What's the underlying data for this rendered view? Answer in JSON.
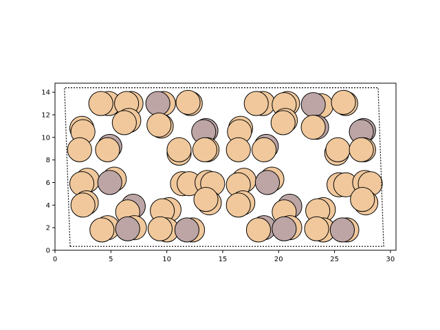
{
  "chart_data": {
    "type": "scatter",
    "title": "",
    "xlabel": "",
    "ylabel": "",
    "xlim": [
      0,
      30.5
    ],
    "ylim": [
      0,
      14.8
    ],
    "xticks": [
      "0",
      "5",
      "10",
      "15",
      "20",
      "25",
      "30"
    ],
    "yticks": [
      "0",
      "2",
      "4",
      "6",
      "8",
      "10",
      "12",
      "14"
    ],
    "atom_radius": 1.08,
    "colors": {
      "light": "#f0c89c",
      "dark": "#bda5a5",
      "edge": "#000000"
    },
    "cell": [
      [
        1.35,
        0.35
      ],
      [
        29.4,
        0.35
      ],
      [
        28.9,
        14.4
      ],
      [
        0.85,
        14.4
      ]
    ],
    "atoms": [
      {
        "x": 4.8,
        "y": 13.0,
        "c": "light"
      },
      {
        "x": 4.1,
        "y": 13.0,
        "c": "light"
      },
      {
        "x": 6.8,
        "y": 13.0,
        "c": "light"
      },
      {
        "x": 6.4,
        "y": 13.0,
        "c": "light"
      },
      {
        "x": 9.7,
        "y": 13.0,
        "c": "light"
      },
      {
        "x": 9.2,
        "y": 13.0,
        "c": "dark"
      },
      {
        "x": 12.1,
        "y": 13.0,
        "c": "light"
      },
      {
        "x": 11.9,
        "y": 13.1,
        "c": "light"
      },
      {
        "x": 2.4,
        "y": 10.8,
        "c": "light"
      },
      {
        "x": 2.5,
        "y": 10.5,
        "c": "light"
      },
      {
        "x": 6.6,
        "y": 11.5,
        "c": "light"
      },
      {
        "x": 6.2,
        "y": 11.3,
        "c": "light"
      },
      {
        "x": 9.5,
        "y": 11.0,
        "c": "light"
      },
      {
        "x": 9.3,
        "y": 11.1,
        "c": "light"
      },
      {
        "x": 13.5,
        "y": 10.6,
        "c": "dark"
      },
      {
        "x": 13.3,
        "y": 10.5,
        "c": "dark"
      },
      {
        "x": 2.2,
        "y": 8.9,
        "c": "light"
      },
      {
        "x": 4.9,
        "y": 9.2,
        "c": "dark"
      },
      {
        "x": 4.7,
        "y": 8.9,
        "c": "light"
      },
      {
        "x": 11.1,
        "y": 8.6,
        "c": "light"
      },
      {
        "x": 11.1,
        "y": 8.9,
        "c": "light"
      },
      {
        "x": 13.6,
        "y": 8.9,
        "c": "light"
      },
      {
        "x": 13.4,
        "y": 8.9,
        "c": "light"
      },
      {
        "x": 2.9,
        "y": 6.2,
        "c": "light"
      },
      {
        "x": 2.4,
        "y": 5.9,
        "c": "light"
      },
      {
        "x": 5.3,
        "y": 6.3,
        "c": "light"
      },
      {
        "x": 4.9,
        "y": 6.0,
        "c": "dark"
      },
      {
        "x": 11.4,
        "y": 5.9,
        "c": "light"
      },
      {
        "x": 12.0,
        "y": 5.9,
        "c": "light"
      },
      {
        "x": 13.6,
        "y": 6.0,
        "c": "light"
      },
      {
        "x": 14.1,
        "y": 5.9,
        "c": "light"
      },
      {
        "x": 13.8,
        "y": 4.2,
        "c": "light"
      },
      {
        "x": 13.5,
        "y": 4.5,
        "c": "light"
      },
      {
        "x": 2.8,
        "y": 4.2,
        "c": "light"
      },
      {
        "x": 2.5,
        "y": 4.0,
        "c": "light"
      },
      {
        "x": 7.0,
        "y": 3.9,
        "c": "dark"
      },
      {
        "x": 6.5,
        "y": 3.4,
        "c": "light"
      },
      {
        "x": 10.2,
        "y": 3.6,
        "c": "light"
      },
      {
        "x": 9.6,
        "y": 3.5,
        "c": "light"
      },
      {
        "x": 4.7,
        "y": 2.0,
        "c": "light"
      },
      {
        "x": 4.2,
        "y": 1.8,
        "c": "light"
      },
      {
        "x": 7.1,
        "y": 2.0,
        "c": "light"
      },
      {
        "x": 6.5,
        "y": 1.9,
        "c": "dark"
      },
      {
        "x": 10.0,
        "y": 1.8,
        "c": "light"
      },
      {
        "x": 9.4,
        "y": 1.9,
        "c": "light"
      },
      {
        "x": 12.3,
        "y": 1.8,
        "c": "light"
      },
      {
        "x": 11.8,
        "y": 1.8,
        "c": "dark"
      },
      {
        "x": 18.6,
        "y": 13.0,
        "c": "light"
      },
      {
        "x": 18.0,
        "y": 13.0,
        "c": "light"
      },
      {
        "x": 20.8,
        "y": 13.0,
        "c": "light"
      },
      {
        "x": 20.5,
        "y": 12.9,
        "c": "light"
      },
      {
        "x": 23.8,
        "y": 12.8,
        "c": "light"
      },
      {
        "x": 23.1,
        "y": 12.9,
        "c": "dark"
      },
      {
        "x": 26.0,
        "y": 13.0,
        "c": "light"
      },
      {
        "x": 25.8,
        "y": 13.1,
        "c": "light"
      },
      {
        "x": 16.6,
        "y": 10.8,
        "c": "light"
      },
      {
        "x": 16.5,
        "y": 10.5,
        "c": "light"
      },
      {
        "x": 20.6,
        "y": 11.5,
        "c": "light"
      },
      {
        "x": 20.4,
        "y": 11.3,
        "c": "light"
      },
      {
        "x": 23.4,
        "y": 10.9,
        "c": "dark"
      },
      {
        "x": 23.1,
        "y": 10.9,
        "c": "light"
      },
      {
        "x": 27.6,
        "y": 10.6,
        "c": "dark"
      },
      {
        "x": 27.4,
        "y": 10.5,
        "c": "dark"
      },
      {
        "x": 16.4,
        "y": 8.9,
        "c": "light"
      },
      {
        "x": 18.9,
        "y": 9.2,
        "c": "dark"
      },
      {
        "x": 18.7,
        "y": 8.9,
        "c": "light"
      },
      {
        "x": 25.2,
        "y": 8.6,
        "c": "light"
      },
      {
        "x": 25.3,
        "y": 8.9,
        "c": "light"
      },
      {
        "x": 27.6,
        "y": 8.9,
        "c": "light"
      },
      {
        "x": 27.4,
        "y": 8.9,
        "c": "light"
      },
      {
        "x": 16.9,
        "y": 6.2,
        "c": "light"
      },
      {
        "x": 16.4,
        "y": 5.8,
        "c": "light"
      },
      {
        "x": 19.4,
        "y": 6.3,
        "c": "light"
      },
      {
        "x": 19.0,
        "y": 6.0,
        "c": "dark"
      },
      {
        "x": 25.4,
        "y": 5.8,
        "c": "light"
      },
      {
        "x": 26.0,
        "y": 5.8,
        "c": "light"
      },
      {
        "x": 27.7,
        "y": 6.0,
        "c": "light"
      },
      {
        "x": 28.2,
        "y": 5.9,
        "c": "light"
      },
      {
        "x": 27.8,
        "y": 4.2,
        "c": "light"
      },
      {
        "x": 27.5,
        "y": 4.5,
        "c": "light"
      },
      {
        "x": 16.8,
        "y": 4.2,
        "c": "light"
      },
      {
        "x": 16.4,
        "y": 4.0,
        "c": "light"
      },
      {
        "x": 21.0,
        "y": 3.9,
        "c": "dark"
      },
      {
        "x": 20.5,
        "y": 3.4,
        "c": "light"
      },
      {
        "x": 24.0,
        "y": 3.6,
        "c": "light"
      },
      {
        "x": 23.5,
        "y": 3.5,
        "c": "light"
      },
      {
        "x": 18.7,
        "y": 2.0,
        "c": "dark"
      },
      {
        "x": 18.2,
        "y": 1.8,
        "c": "light"
      },
      {
        "x": 21.0,
        "y": 2.0,
        "c": "light"
      },
      {
        "x": 20.5,
        "y": 1.9,
        "c": "dark"
      },
      {
        "x": 24.0,
        "y": 1.8,
        "c": "light"
      },
      {
        "x": 23.4,
        "y": 1.9,
        "c": "light"
      },
      {
        "x": 26.1,
        "y": 1.8,
        "c": "light"
      },
      {
        "x": 25.7,
        "y": 1.8,
        "c": "dark"
      }
    ]
  }
}
